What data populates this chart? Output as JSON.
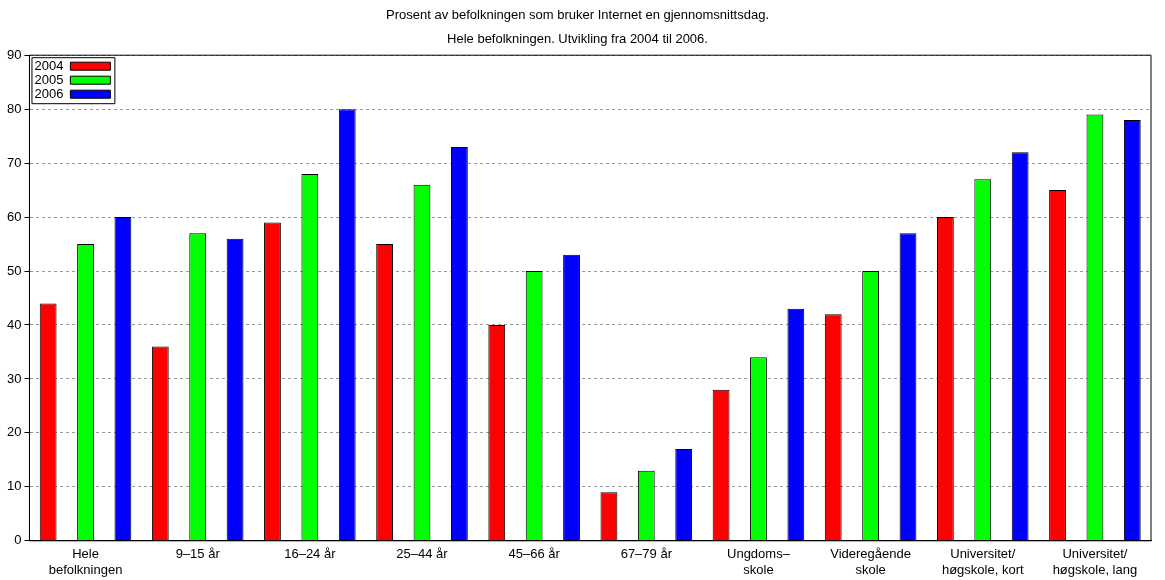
{
  "chart_data": {
    "type": "bar",
    "title": "Prosent av befolkningen som bruker Internet en gjennomsnittsdag.",
    "subtitle": "Hele befolkningen. Utvikling fra 2004 til 2006.",
    "categories": [
      "Hele\nbefolkningen",
      "9–15 år",
      "16–24 år",
      "25–44 år",
      "45–66 år",
      "67–79 år",
      "Ungdoms–\nskole",
      "Videregående\nskole",
      "Universitet/\nhøgskole, kort",
      "Universitet/\nhøgskole, lang"
    ],
    "series": [
      {
        "name": "2004",
        "color": "#ff0000",
        "values": [
          44,
          36,
          59,
          55,
          40,
          9,
          28,
          42,
          60,
          65
        ]
      },
      {
        "name": "2005",
        "color": "#00ff00",
        "values": [
          55,
          57,
          68,
          66,
          50,
          13,
          34,
          50,
          67,
          79
        ]
      },
      {
        "name": "2006",
        "color": "#0000ff",
        "values": [
          60,
          56,
          80,
          73,
          53,
          17,
          43,
          57,
          72,
          78
        ]
      }
    ],
    "ylim": [
      0,
      90
    ],
    "yticks": [
      0,
      10,
      20,
      30,
      40,
      50,
      60,
      70,
      80,
      90
    ],
    "grid": "y",
    "legend": "top left"
  }
}
